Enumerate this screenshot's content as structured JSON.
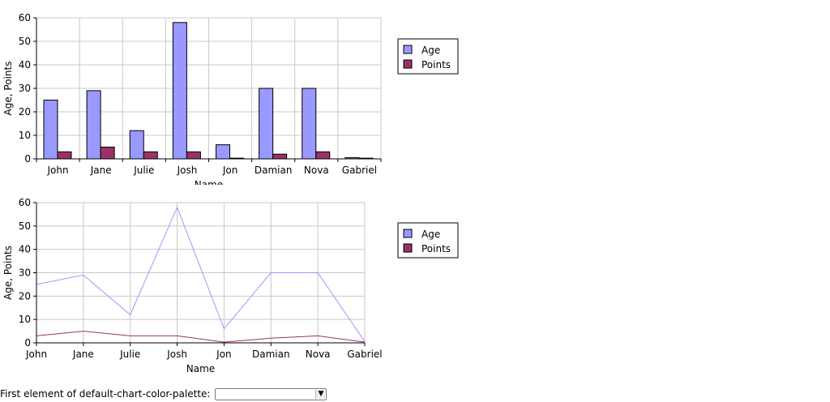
{
  "chart_data": [
    {
      "type": "bar",
      "categories": [
        "John",
        "Jane",
        "Julie",
        "Josh",
        "Jon",
        "Damian",
        "Nova",
        "Gabriel"
      ],
      "series": [
        {
          "name": "Age",
          "values": [
            25,
            29,
            12,
            58,
            6,
            30,
            30,
            0.5
          ],
          "color": "#9999ff"
        },
        {
          "name": "Points",
          "values": [
            3,
            5,
            3,
            3,
            0.3,
            2,
            3,
            0.3
          ],
          "color": "#993366"
        }
      ],
      "xlabel": "Name",
      "ylabel": "Age, Points",
      "ylim": [
        0,
        60
      ],
      "yticks": [
        0,
        10,
        20,
        30,
        40,
        50,
        60
      ],
      "grid": true,
      "legend_position": "right"
    },
    {
      "type": "line",
      "categories": [
        "John",
        "Jane",
        "Julie",
        "Josh",
        "Jon",
        "Damian",
        "Nova",
        "Gabriel"
      ],
      "series": [
        {
          "name": "Age",
          "values": [
            25,
            29,
            12,
            58,
            6,
            30,
            30,
            0.5
          ],
          "color": "#9999ff"
        },
        {
          "name": "Points",
          "values": [
            3,
            5,
            3,
            3,
            0.3,
            2,
            3,
            0.3
          ],
          "color": "#993366"
        }
      ],
      "xlabel": "Name",
      "ylabel": "Age, Points",
      "ylim": [
        0,
        60
      ],
      "yticks": [
        0,
        10,
        20,
        30,
        40,
        50,
        60
      ],
      "grid": true,
      "legend_position": "right"
    }
  ],
  "footer": {
    "label": "First element of default-chart-color-palette:",
    "select_value": "",
    "arrow_icon": "triangle-down-icon"
  }
}
